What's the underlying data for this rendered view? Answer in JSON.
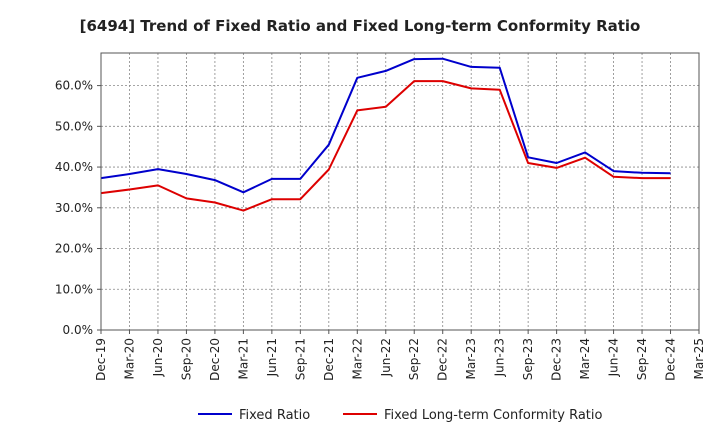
{
  "chart_data": {
    "type": "line",
    "title": "[6494]  Trend of Fixed Ratio and Fixed Long-term Conformity Ratio",
    "xlabel": "",
    "ylabel": "",
    "categories": [
      "Dec-19",
      "Mar-20",
      "Jun-20",
      "Sep-20",
      "Dec-20",
      "Mar-21",
      "Jun-21",
      "Sep-21",
      "Dec-21",
      "Mar-22",
      "Jun-22",
      "Sep-22",
      "Dec-22",
      "Mar-23",
      "Jun-23",
      "Sep-23",
      "Dec-23",
      "Mar-24",
      "Jun-24",
      "Sep-24",
      "Dec-24",
      "Mar-25"
    ],
    "yticks": [
      "0.0%",
      "10.0%",
      "20.0%",
      "30.0%",
      "40.0%",
      "50.0%",
      "60.0%"
    ],
    "ylim": [
      0,
      68
    ],
    "grid": true,
    "legend_position": "bottom",
    "series": [
      {
        "name": "Fixed Ratio",
        "color": "#0000cc",
        "values": [
          37.3,
          38.3,
          39.5,
          38.3,
          36.8,
          33.8,
          37.1,
          37.1,
          45.5,
          61.9,
          63.6,
          66.5,
          66.6,
          64.6,
          64.4,
          42.4,
          41.0,
          43.6,
          39.0,
          38.6,
          38.5,
          null
        ]
      },
      {
        "name": "Fixed Long-term Conformity Ratio",
        "color": "#dd0000",
        "values": [
          33.6,
          34.5,
          35.5,
          32.3,
          31.3,
          29.3,
          32.1,
          32.1,
          39.4,
          53.9,
          54.8,
          61.1,
          61.1,
          59.3,
          59.0,
          41.0,
          39.8,
          42.3,
          37.6,
          37.3,
          37.3,
          null
        ]
      }
    ]
  }
}
